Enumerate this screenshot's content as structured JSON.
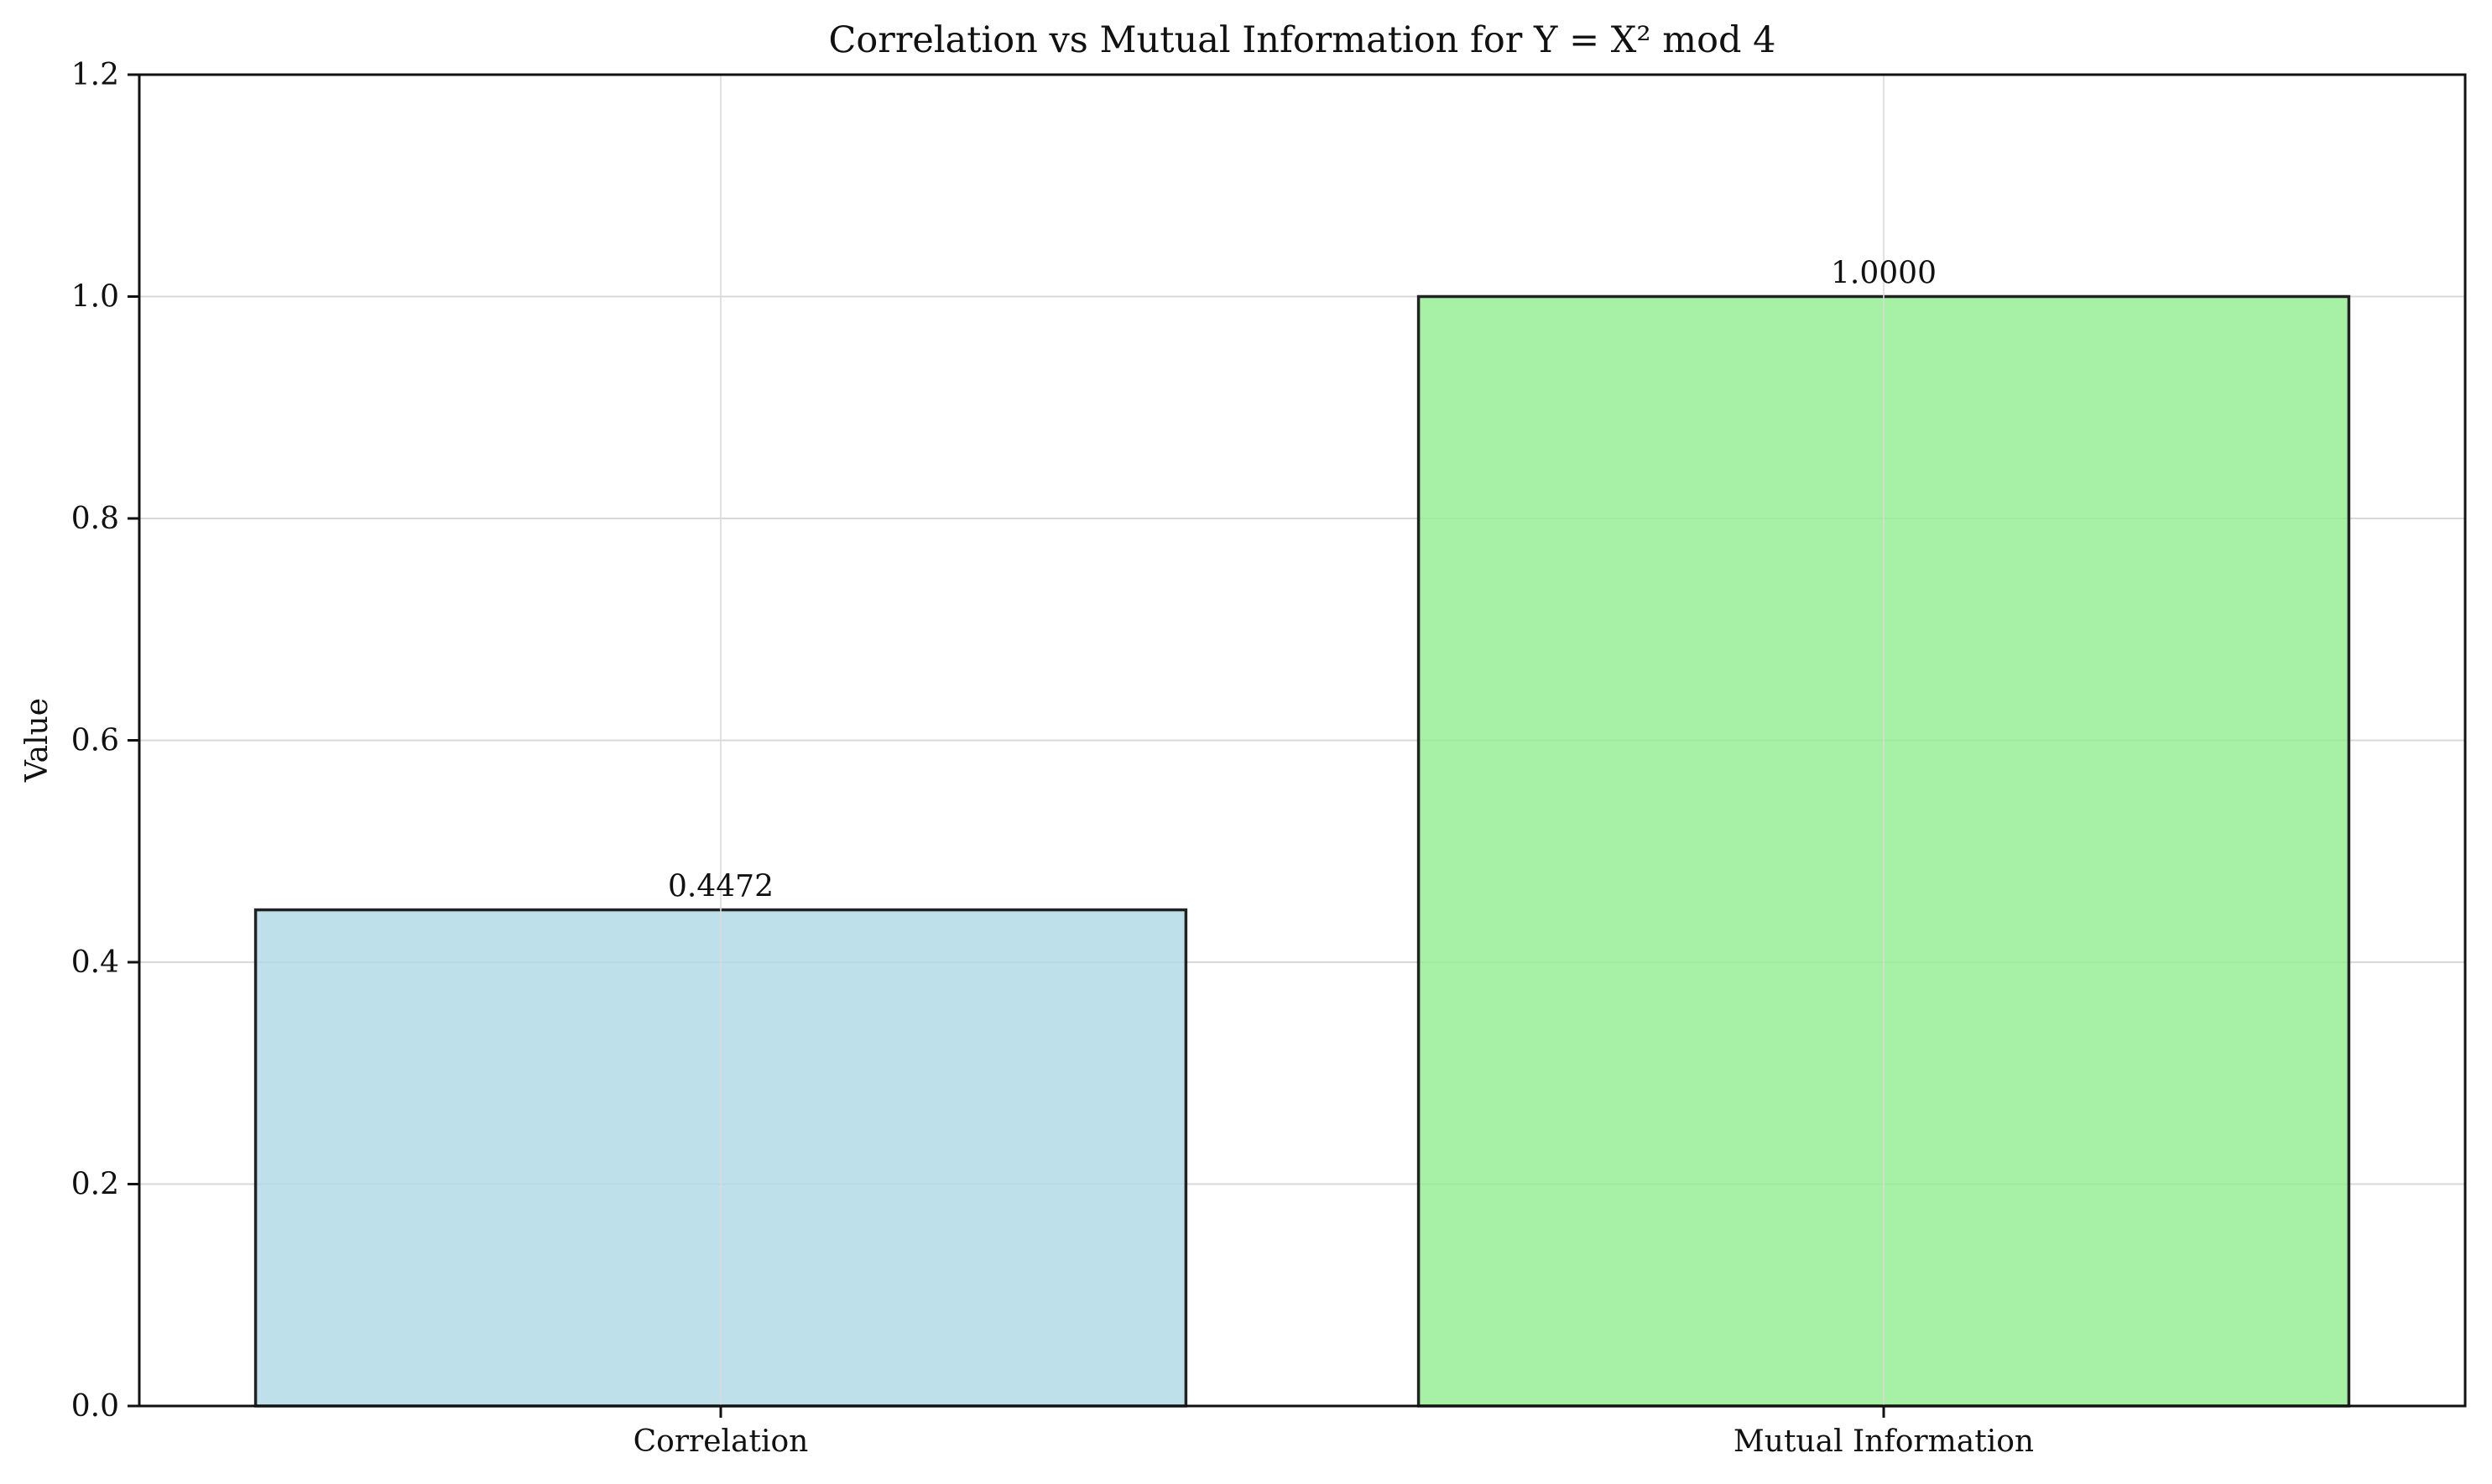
{
  "chart_data": {
    "type": "bar",
    "title": "Correlation vs Mutual Information for Y = X² mod 4",
    "xlabel": "",
    "ylabel": "Value",
    "categories": [
      "Correlation",
      "Mutual Information"
    ],
    "values": [
      0.4472,
      1.0
    ],
    "value_labels": [
      "0.4472",
      "1.0000"
    ],
    "bar_colors": [
      "#add8e6",
      "#90ee90"
    ],
    "bar_alpha": 0.8,
    "edge_color": "#222222",
    "ylim": [
      0,
      1.2
    ],
    "yticks": [
      0.0,
      0.2,
      0.4,
      0.6,
      0.8,
      1.0,
      1.2
    ],
    "ytick_labels": [
      "0.0",
      "0.2",
      "0.4",
      "0.6",
      "0.8",
      "1.0",
      "1.2"
    ],
    "grid": true
  }
}
